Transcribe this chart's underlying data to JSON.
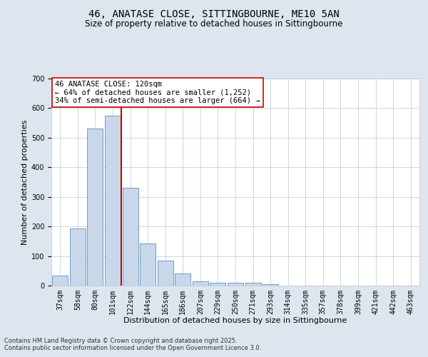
{
  "title1": "46, ANATASE CLOSE, SITTINGBOURNE, ME10 5AN",
  "title2": "Size of property relative to detached houses in Sittingbourne",
  "xlabel": "Distribution of detached houses by size in Sittingbourne",
  "ylabel": "Number of detached properties",
  "categories": [
    "37sqm",
    "58sqm",
    "80sqm",
    "101sqm",
    "122sqm",
    "144sqm",
    "165sqm",
    "186sqm",
    "207sqm",
    "229sqm",
    "250sqm",
    "271sqm",
    "293sqm",
    "314sqm",
    "335sqm",
    "357sqm",
    "378sqm",
    "399sqm",
    "421sqm",
    "442sqm",
    "463sqm"
  ],
  "values": [
    33,
    193,
    530,
    575,
    330,
    143,
    85,
    40,
    14,
    10,
    10,
    10,
    5,
    0,
    0,
    0,
    0,
    0,
    0,
    0,
    0
  ],
  "bar_color": "#c8d8ea",
  "bar_edge_color": "#6090b8",
  "vline_color": "#cc0000",
  "annotation_text": "46 ANATASE CLOSE: 120sqm\n← 64% of detached houses are smaller (1,252)\n34% of semi-detached houses are larger (664) →",
  "annotation_box_color": "#ffffff",
  "annotation_box_edge_color": "#cc0000",
  "ylim": [
    0,
    700
  ],
  "yticks": [
    0,
    100,
    200,
    300,
    400,
    500,
    600,
    700
  ],
  "bg_color": "#dde6ef",
  "plot_bg_color": "#ffffff",
  "grid_color": "#b8c8d8",
  "footer1": "Contains HM Land Registry data © Crown copyright and database right 2025.",
  "footer2": "Contains public sector information licensed under the Open Government Licence 3.0.",
  "title_fontsize": 10,
  "subtitle_fontsize": 8.5,
  "axis_label_fontsize": 8,
  "tick_fontsize": 7,
  "annotation_fontsize": 7.5
}
